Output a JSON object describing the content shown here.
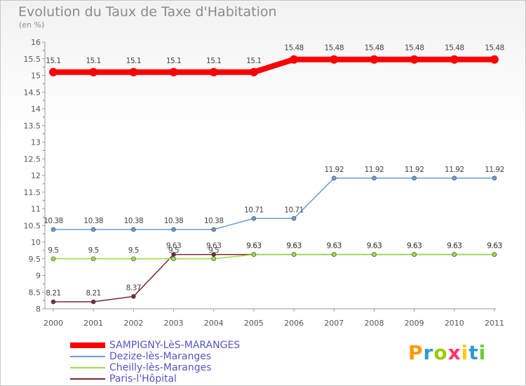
{
  "title": "Evolution du Taux de Taxe d'Habitation",
  "subtitle": "(en %)",
  "logo": {
    "letters": [
      "P",
      "r",
      "o",
      "x",
      "i",
      "t",
      "i"
    ],
    "colors": [
      "#ff9900",
      "#3399cc",
      "#99cc00",
      "#ff3366",
      "#ffcc00",
      "#3399cc",
      "#66cc33"
    ]
  },
  "chart_data": {
    "type": "line",
    "title": "Evolution du Taux de Taxe d'Habitation",
    "ylabel": "(en %)",
    "xlabel": "",
    "x": [
      "2000",
      "2001",
      "2002",
      "2003",
      "2004",
      "2005",
      "2006",
      "2007",
      "2008",
      "2009",
      "2010",
      "2011"
    ],
    "ylim": [
      8,
      16
    ],
    "yticks": [
      "8",
      "8.5",
      "9",
      "9.5",
      "10",
      "10.5",
      "11",
      "11.5",
      "12",
      "12.5",
      "13",
      "13.5",
      "14",
      "14.5",
      "15",
      "15.5",
      "16"
    ],
    "grid": false,
    "legend_position": "bottom-left",
    "series": [
      {
        "name": "SAMPIGNY-LèS-MARANGES",
        "color": "#ff0000",
        "width": 8,
        "values": [
          15.1,
          15.1,
          15.1,
          15.1,
          15.1,
          15.1,
          15.48,
          15.48,
          15.48,
          15.48,
          15.48,
          15.48
        ],
        "labels": [
          "15.1",
          "15.1",
          "15.1",
          "15.1",
          "15.1",
          "15.1",
          "15.48",
          "15.48",
          "15.48",
          "15.48",
          "15.48",
          "15.48"
        ]
      },
      {
        "name": "Dezize-lès-Maranges",
        "color": "#6b9ccd",
        "width": 1.5,
        "values": [
          10.38,
          10.38,
          10.38,
          10.38,
          10.38,
          10.71,
          10.71,
          11.92,
          11.92,
          11.92,
          11.92,
          11.92
        ],
        "labels": [
          "10.38",
          "10.38",
          "10.38",
          "10.38",
          "10.38",
          "10.71",
          "10.71",
          "11.92",
          "11.92",
          "11.92",
          "11.92",
          "11.92"
        ]
      },
      {
        "name": "Cheilly-lès-Maranges",
        "color": "#99dd44",
        "width": 1.5,
        "values": [
          9.5,
          9.5,
          9.5,
          9.5,
          9.5,
          9.63,
          9.63,
          9.63,
          9.63,
          9.63,
          9.63,
          9.63
        ],
        "labels": [
          "9.5",
          "9.5",
          "9.5",
          "9.5",
          "9.5",
          "9.63",
          "9.63",
          "9.63",
          "9.63",
          "9.63",
          "9.63",
          "9.63"
        ]
      },
      {
        "name": "Paris-l'Hôpital",
        "color": "#7a2a2a",
        "width": 1.5,
        "values": [
          8.21,
          8.21,
          8.37,
          9.63,
          9.63,
          9.63,
          9.63,
          9.63,
          9.63,
          9.63,
          9.63,
          9.63
        ],
        "labels": [
          "8.21",
          "8.21",
          "8.37",
          "9.63",
          "9.63",
          "9.63",
          "9.63",
          "9.63",
          "9.63",
          "9.63",
          "9.63",
          "9.63"
        ]
      }
    ]
  }
}
